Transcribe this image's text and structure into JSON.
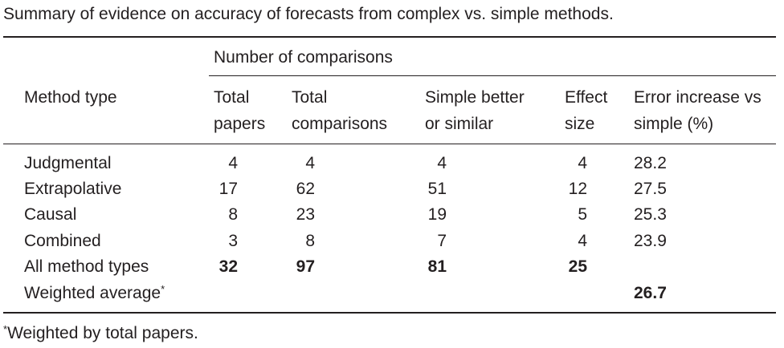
{
  "title": "Summary of evidence on accuracy of forecasts from complex vs. simple methods.",
  "table": {
    "group_header": "Number of comparisons",
    "columns": [
      "Method type",
      "Total papers",
      "Total comparisons",
      "Simple better or similar",
      "Effect size",
      "Error increase vs simple (%)"
    ],
    "rows": [
      [
        "Judgmental",
        4,
        4,
        4,
        4,
        28.2
      ],
      [
        "Extrapolative",
        17,
        62,
        51,
        12,
        27.5
      ],
      [
        "Causal",
        8,
        23,
        19,
        5,
        25.3
      ],
      [
        "Combined",
        3,
        8,
        7,
        4,
        23.9
      ],
      [
        "All method types",
        32,
        97,
        81,
        25,
        null
      ],
      [
        "Weighted average",
        null,
        null,
        null,
        null,
        26.7
      ]
    ],
    "row_note_marks": [
      null,
      null,
      null,
      null,
      null,
      "*"
    ]
  },
  "footnote": {
    "mark": "*",
    "text": "Weighted by total papers."
  }
}
